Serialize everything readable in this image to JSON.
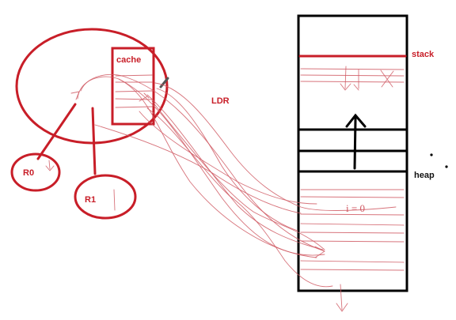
{
  "labels": {
    "cache": "cache",
    "ldr": "LDR",
    "stack": "stack",
    "heap": "heap",
    "r0": "R0",
    "r1": "R1",
    "memory_annotation": "i = 0"
  },
  "colors": {
    "ink_red": "#c81e28",
    "ink_black": "#000000",
    "sketch_red": "#d05a64"
  }
}
